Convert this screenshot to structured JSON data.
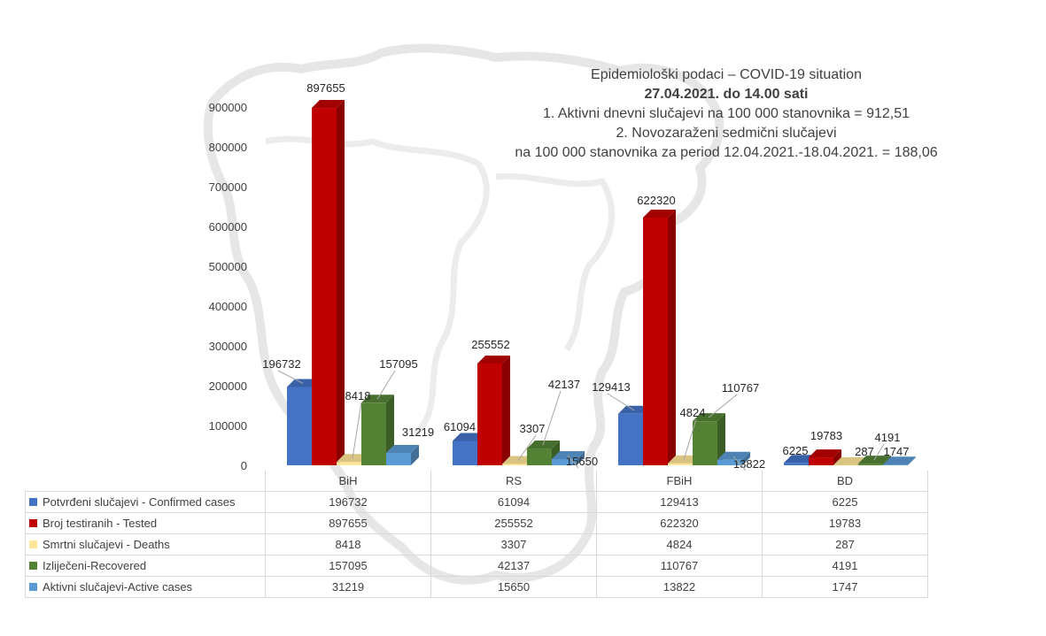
{
  "chart_data": {
    "type": "bar",
    "title": [
      "Epidemiološki podaci – COVID-19 situation",
      "27.04.2021. do 14.00 sati",
      "1. Aktivni dnevni slučajevi na 100 000 stanovnika = 912,51",
      "2. Novozaraženi sedmični slučajevi",
      "na 100 000 stanovnika za period 12.04.2021.-18.04.2021. = 188,06"
    ],
    "categories": [
      "BiH",
      "RS",
      "FBiH",
      "BD"
    ],
    "ylim": [
      0,
      900000
    ],
    "yticks": [
      "0",
      "100000",
      "200000",
      "300000",
      "400000",
      "500000",
      "600000",
      "700000",
      "800000",
      "900000"
    ],
    "legend_position": "data-table",
    "series": [
      {
        "name": "Potvrđeni slučajevi - Confirmed cases",
        "color": "#4472c4",
        "values": [
          196732,
          61094,
          129413,
          6225
        ]
      },
      {
        "name": "Broj testiranih - Tested",
        "color": "#c00000",
        "values": [
          897655,
          255552,
          622320,
          19783
        ]
      },
      {
        "name": "Smrtni slučajevi - Deaths",
        "color": "#ffe699",
        "values": [
          8418,
          3307,
          4824,
          287
        ]
      },
      {
        "name": "Izliječeni-Recovered",
        "color": "#548235",
        "values": [
          157095,
          42137,
          110767,
          4191
        ]
      },
      {
        "name": "Aktivni slučajevi-Active cases",
        "color": "#5b9bd5",
        "values": [
          31219,
          15650,
          13822,
          1747
        ]
      }
    ]
  }
}
